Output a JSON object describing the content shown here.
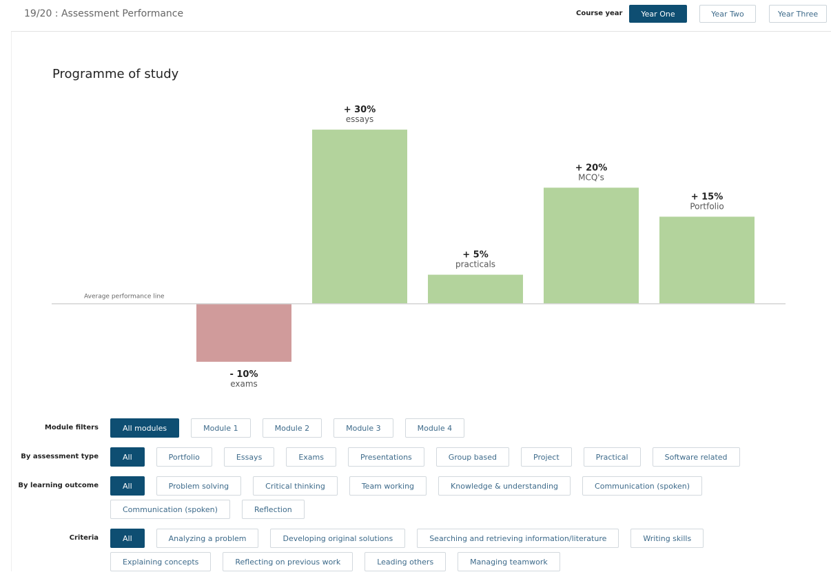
{
  "header": {
    "title": "19/20 : Assessment Performance",
    "course_year_label": "Course year",
    "years": [
      "Year One",
      "Year Two",
      "Year Three"
    ]
  },
  "chart_data": {
    "type": "bar",
    "title": "Programme of study",
    "annotation": "Average performance line",
    "categories": [
      "exams",
      "essays",
      "practicals",
      "MCQ's",
      "Portfolio"
    ],
    "values": [
      -10,
      30,
      5,
      20,
      15
    ],
    "value_labels": [
      "- 10%",
      "+ 30%",
      "+ 5%",
      "+ 20%",
      "+ 15%"
    ],
    "colors": [
      "#d09b9b",
      "#b3d39c",
      "#b3d39c",
      "#b3d39c",
      "#b3d39c"
    ],
    "ylim": [
      -15,
      35
    ]
  },
  "filters": [
    {
      "label": "Module filters",
      "options": [
        "All modules",
        "Module 1",
        "Module 2",
        "Module 3",
        "Module 4"
      ]
    },
    {
      "label": "By assessment type",
      "options": [
        "All",
        "Portfolio",
        "Essays",
        "Exams",
        "Presentations",
        "Group based",
        "Project",
        "Practical",
        "Software related"
      ]
    },
    {
      "label": "By learning outcome",
      "options": [
        "All",
        "Problem solving",
        "Critical thinking",
        "Team working",
        "Knowledge & understanding",
        "Communication (spoken)",
        "Communication (spoken)",
        "Reflection"
      ]
    },
    {
      "label": "Criteria",
      "options": [
        "All",
        "Analyzing a problem",
        "Developing original solutions",
        "Searching and retrieving information/literature",
        "Writing skills",
        "Explaining concepts",
        "Reflecting on previous work",
        "Leading others",
        "Managing teamwork"
      ]
    }
  ]
}
